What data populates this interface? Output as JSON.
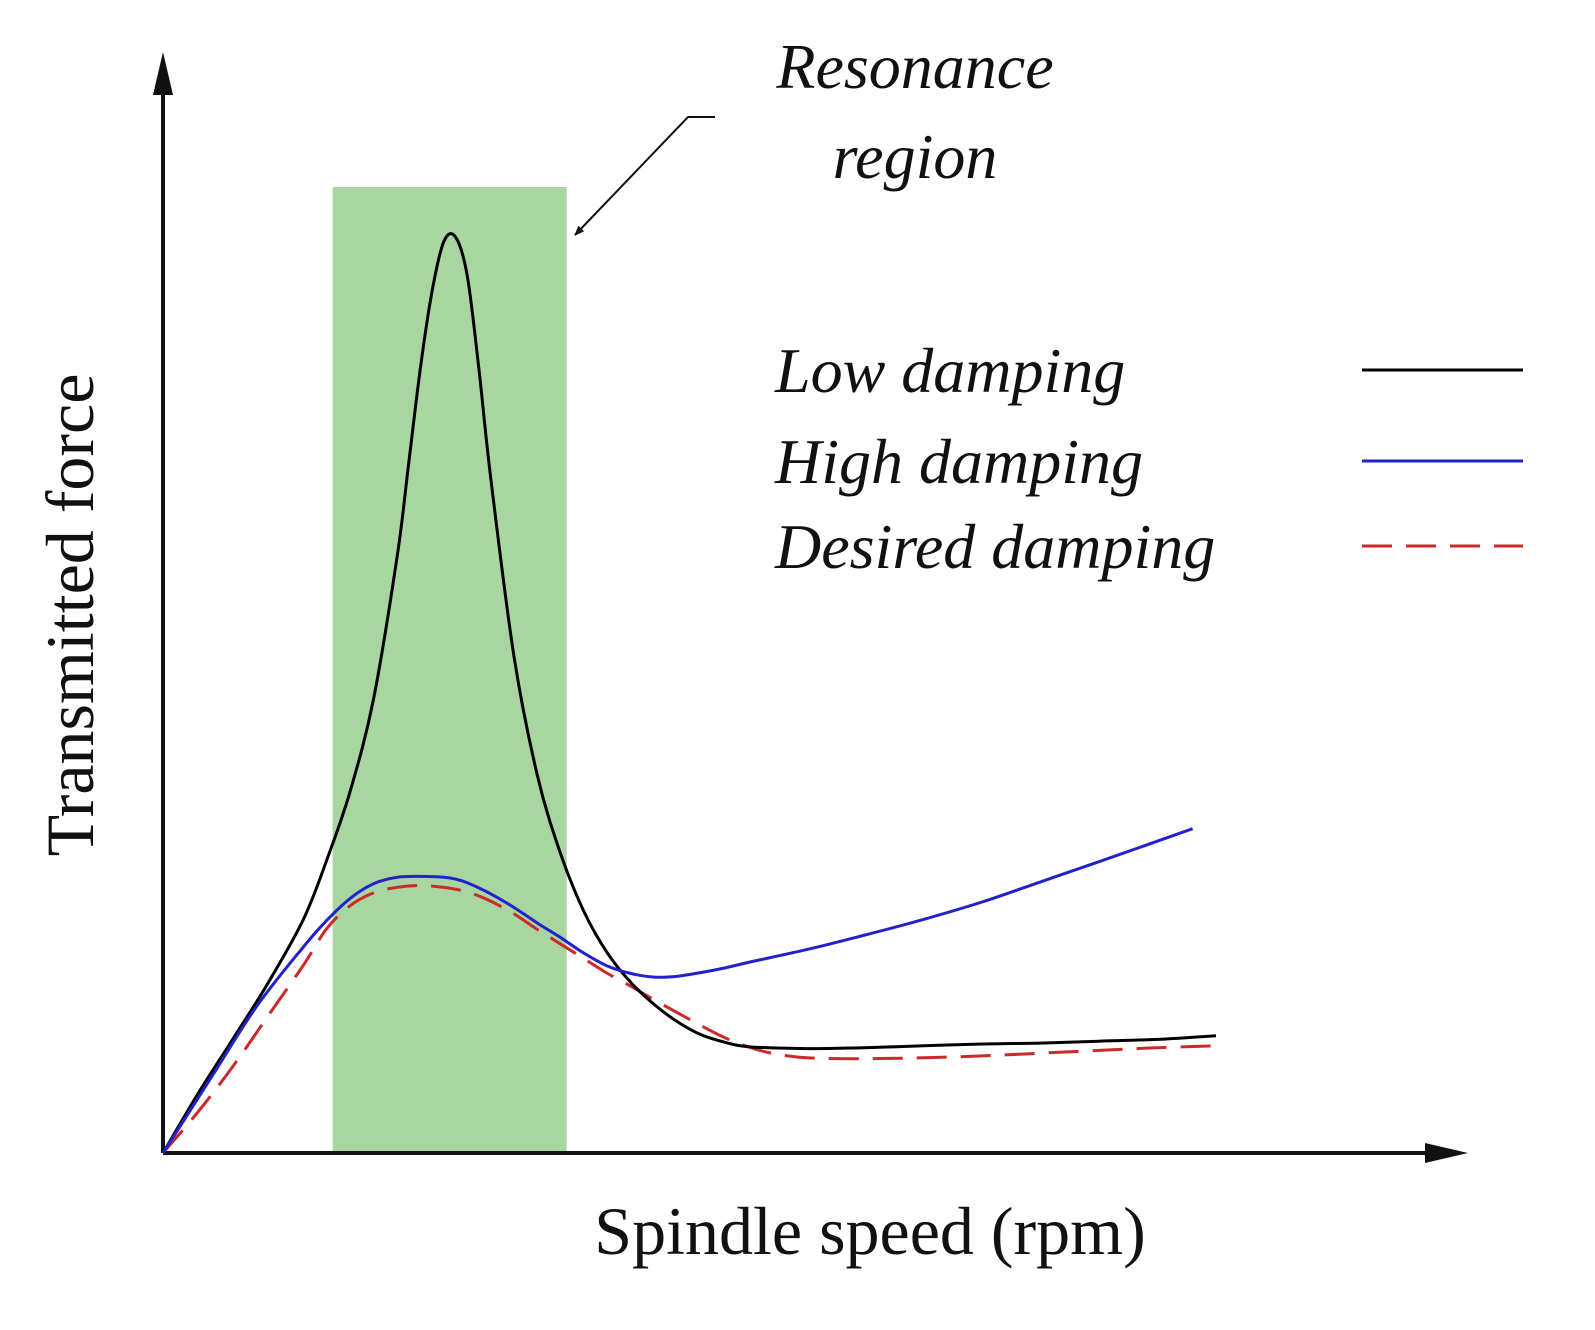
{
  "chart_data": {
    "type": "line",
    "title": "",
    "xlabel": "Spindle speed (rpm)",
    "ylabel": "Transmitted force",
    "xlim": [
      0,
      100
    ],
    "ylim": [
      0,
      100
    ],
    "grid": false,
    "axis_ticks": false,
    "legend_position": "upper-right",
    "annotation": {
      "line1": "Resonance",
      "line2": "region",
      "region_x": [
        14.5,
        34.5
      ],
      "region_color": "#a9d6a0"
    },
    "series": [
      {
        "name": "Low damping",
        "color": "#000000",
        "dash": "solid",
        "x": [
          0,
          3,
          6,
          9,
          12,
          14,
          16,
          18,
          20,
          21,
          22,
          23,
          24,
          25,
          26,
          27,
          28,
          30,
          32,
          34,
          36,
          38,
          40,
          42,
          44,
          46,
          48,
          50,
          55,
          60,
          65,
          70,
          75,
          80,
          85,
          90
        ],
        "y": [
          0,
          6.5,
          12.5,
          18.6,
          25.5,
          32,
          39.5,
          49.6,
          65,
          75.3,
          85.7,
          94.1,
          99.5,
          100,
          95.8,
          85.6,
          73.8,
          54.2,
          41.2,
          32.6,
          26.3,
          21.8,
          18.6,
          16.2,
          14.3,
          12.9,
          12.1,
          11.6,
          11.4,
          11.5,
          11.7,
          11.9,
          12,
          12.2,
          12.4,
          12.8
        ]
      },
      {
        "name": "High damping",
        "color": "#2222cc",
        "dash": "solid",
        "x": [
          0,
          4,
          8,
          12,
          14,
          16,
          18,
          20,
          22,
          24,
          25,
          26,
          28,
          30,
          32,
          34,
          36,
          38,
          40,
          42,
          44,
          46,
          48,
          50,
          55,
          60,
          65,
          70,
          75,
          80,
          88
        ],
        "y": [
          0,
          8,
          16,
          22.5,
          25.4,
          27.8,
          29.4,
          30.1,
          30.2,
          30.1,
          29.9,
          29.5,
          28.3,
          26.8,
          25.1,
          23.5,
          21.8,
          20.4,
          19.6,
          19.2,
          19.3,
          19.7,
          20.2,
          20.8,
          22.2,
          23.8,
          25.5,
          27.4,
          29.6,
          31.8,
          35.4
        ]
      },
      {
        "name": "Desired damping",
        "color": "#cc2a2a",
        "dash": "dashed",
        "x": [
          0,
          3,
          6,
          9,
          12,
          14,
          16,
          18,
          20,
          22,
          24,
          26,
          28,
          30,
          32,
          34,
          36,
          38,
          40,
          42,
          44,
          46,
          48,
          50,
          52,
          55,
          60,
          65,
          70,
          75,
          80,
          85,
          90
        ],
        "y": [
          0,
          4.5,
          9.5,
          15,
          20.5,
          24.5,
          27,
          28.4,
          29,
          29.2,
          29,
          28.5,
          27.5,
          26.1,
          24.4,
          22.8,
          21.2,
          19.6,
          18.2,
          16.7,
          15.3,
          13.9,
          12.6,
          11.6,
          10.9,
          10.4,
          10.3,
          10.4,
          10.6,
          10.9,
          11.2,
          11.5,
          11.7
        ]
      }
    ]
  }
}
